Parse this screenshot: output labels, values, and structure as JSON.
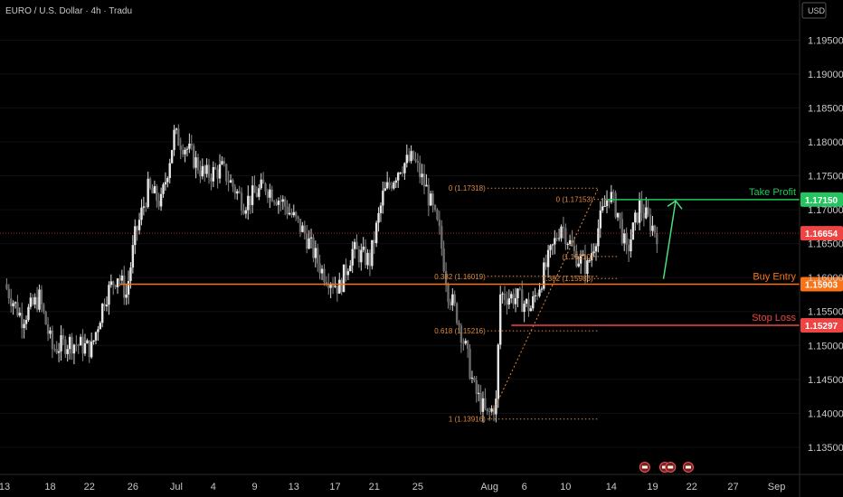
{
  "header": {
    "title": "EURO / U.S. Dollar · 4h · Tradu",
    "currency": "USD"
  },
  "chart_data": {
    "type": "candlestick",
    "ylim": [
      1.131,
      1.2009
    ],
    "y_ticks": [
      "1.13500",
      "1.14000",
      "1.14500",
      "1.15000",
      "1.15500",
      "1.16000",
      "1.16500",
      "1.17000",
      "1.17500",
      "1.18000",
      "1.18500",
      "1.19000",
      "1.19500"
    ],
    "y_tick_values": [
      1.135,
      1.14,
      1.145,
      1.15,
      1.155,
      1.16,
      1.165,
      1.17,
      1.175,
      1.18,
      1.185,
      1.19,
      1.195
    ],
    "x_ticks": [
      "13",
      "18",
      "22",
      "26",
      "Jul",
      "4",
      "9",
      "13",
      "17",
      "21",
      "25",
      "Aug",
      "6",
      "10",
      "14",
      "19",
      "22",
      "27",
      "Sep"
    ],
    "x_tick_index": [
      0,
      10.5,
      19.5,
      29.5,
      39.5,
      48,
      57.5,
      66.5,
      76,
      85,
      95,
      111.5,
      119.5,
      129,
      139.5,
      149,
      158,
      167.5,
      177.5
    ],
    "x_range": [
      0,
      183
    ],
    "price_path": [
      [
        0,
        1.159
      ],
      [
        4,
        1.154
      ],
      [
        8,
        1.157
      ],
      [
        11,
        1.1495
      ],
      [
        15,
        1.1505
      ],
      [
        20,
        1.1495
      ],
      [
        23,
        1.157
      ],
      [
        26,
        1.1605
      ],
      [
        28,
        1.1575
      ],
      [
        30,
        1.166
      ],
      [
        33,
        1.173
      ],
      [
        36,
        1.171
      ],
      [
        39,
        1.181
      ],
      [
        42,
        1.179
      ],
      [
        46,
        1.175
      ],
      [
        50,
        1.176
      ],
      [
        55,
        1.171
      ],
      [
        60,
        1.1735
      ],
      [
        64,
        1.171
      ],
      [
        69,
        1.1665
      ],
      [
        73,
        1.161
      ],
      [
        77,
        1.1585
      ],
      [
        80,
        1.164
      ],
      [
        84,
        1.1625
      ],
      [
        87,
        1.172
      ],
      [
        91,
        1.1765
      ],
      [
        94,
        1.1775
      ],
      [
        97,
        1.173
      ],
      [
        100,
        1.1665
      ],
      [
        102,
        1.158
      ],
      [
        104,
        1.1545
      ],
      [
        106,
        1.1495
      ],
      [
        108,
        1.1435
      ],
      [
        111,
        1.1395
      ],
      [
        113,
        1.1415
      ],
      [
        114,
        1.1575
      ],
      [
        118,
        1.157
      ],
      [
        121,
        1.1555
      ],
      [
        125,
        1.1625
      ],
      [
        128,
        1.168
      ],
      [
        131,
        1.1635
      ],
      [
        134,
        1.1615
      ],
      [
        137,
        1.1685
      ],
      [
        139,
        1.1725
      ],
      [
        141,
        1.1695
      ],
      [
        143,
        1.1635
      ],
      [
        146,
        1.1705
      ],
      [
        148,
        1.1685
      ],
      [
        150,
        1.1665
      ]
    ],
    "fib_upper": {
      "levels": [
        "0 (1.17318)",
        "0.382 (1.16019)",
        "0.618 (1.15216)",
        "1 (1.13916)"
      ],
      "values": [
        1.17318,
        1.16019,
        1.15216,
        1.13916
      ]
    },
    "fib_lower": {
      "levels": [
        "0 (1.17153)",
        "(1.16310)",
        "1.382 (1.15986)"
      ],
      "values": [
        1.17153,
        1.1631,
        1.15986
      ]
    },
    "levels": [
      {
        "name": "Take Profit",
        "value": "1.17150",
        "y": 1.1715,
        "color": "#22c55e"
      },
      {
        "name": "Buy Entry",
        "value": "1.15903",
        "y": 1.15903,
        "color": "#f97316"
      },
      {
        "name": "Stop Loss",
        "value": "1.15297",
        "y": 1.15297,
        "color": "#ef4444"
      }
    ],
    "current_price": {
      "value": "1.16654",
      "y": 1.16654,
      "color": "#ef4444"
    }
  }
}
